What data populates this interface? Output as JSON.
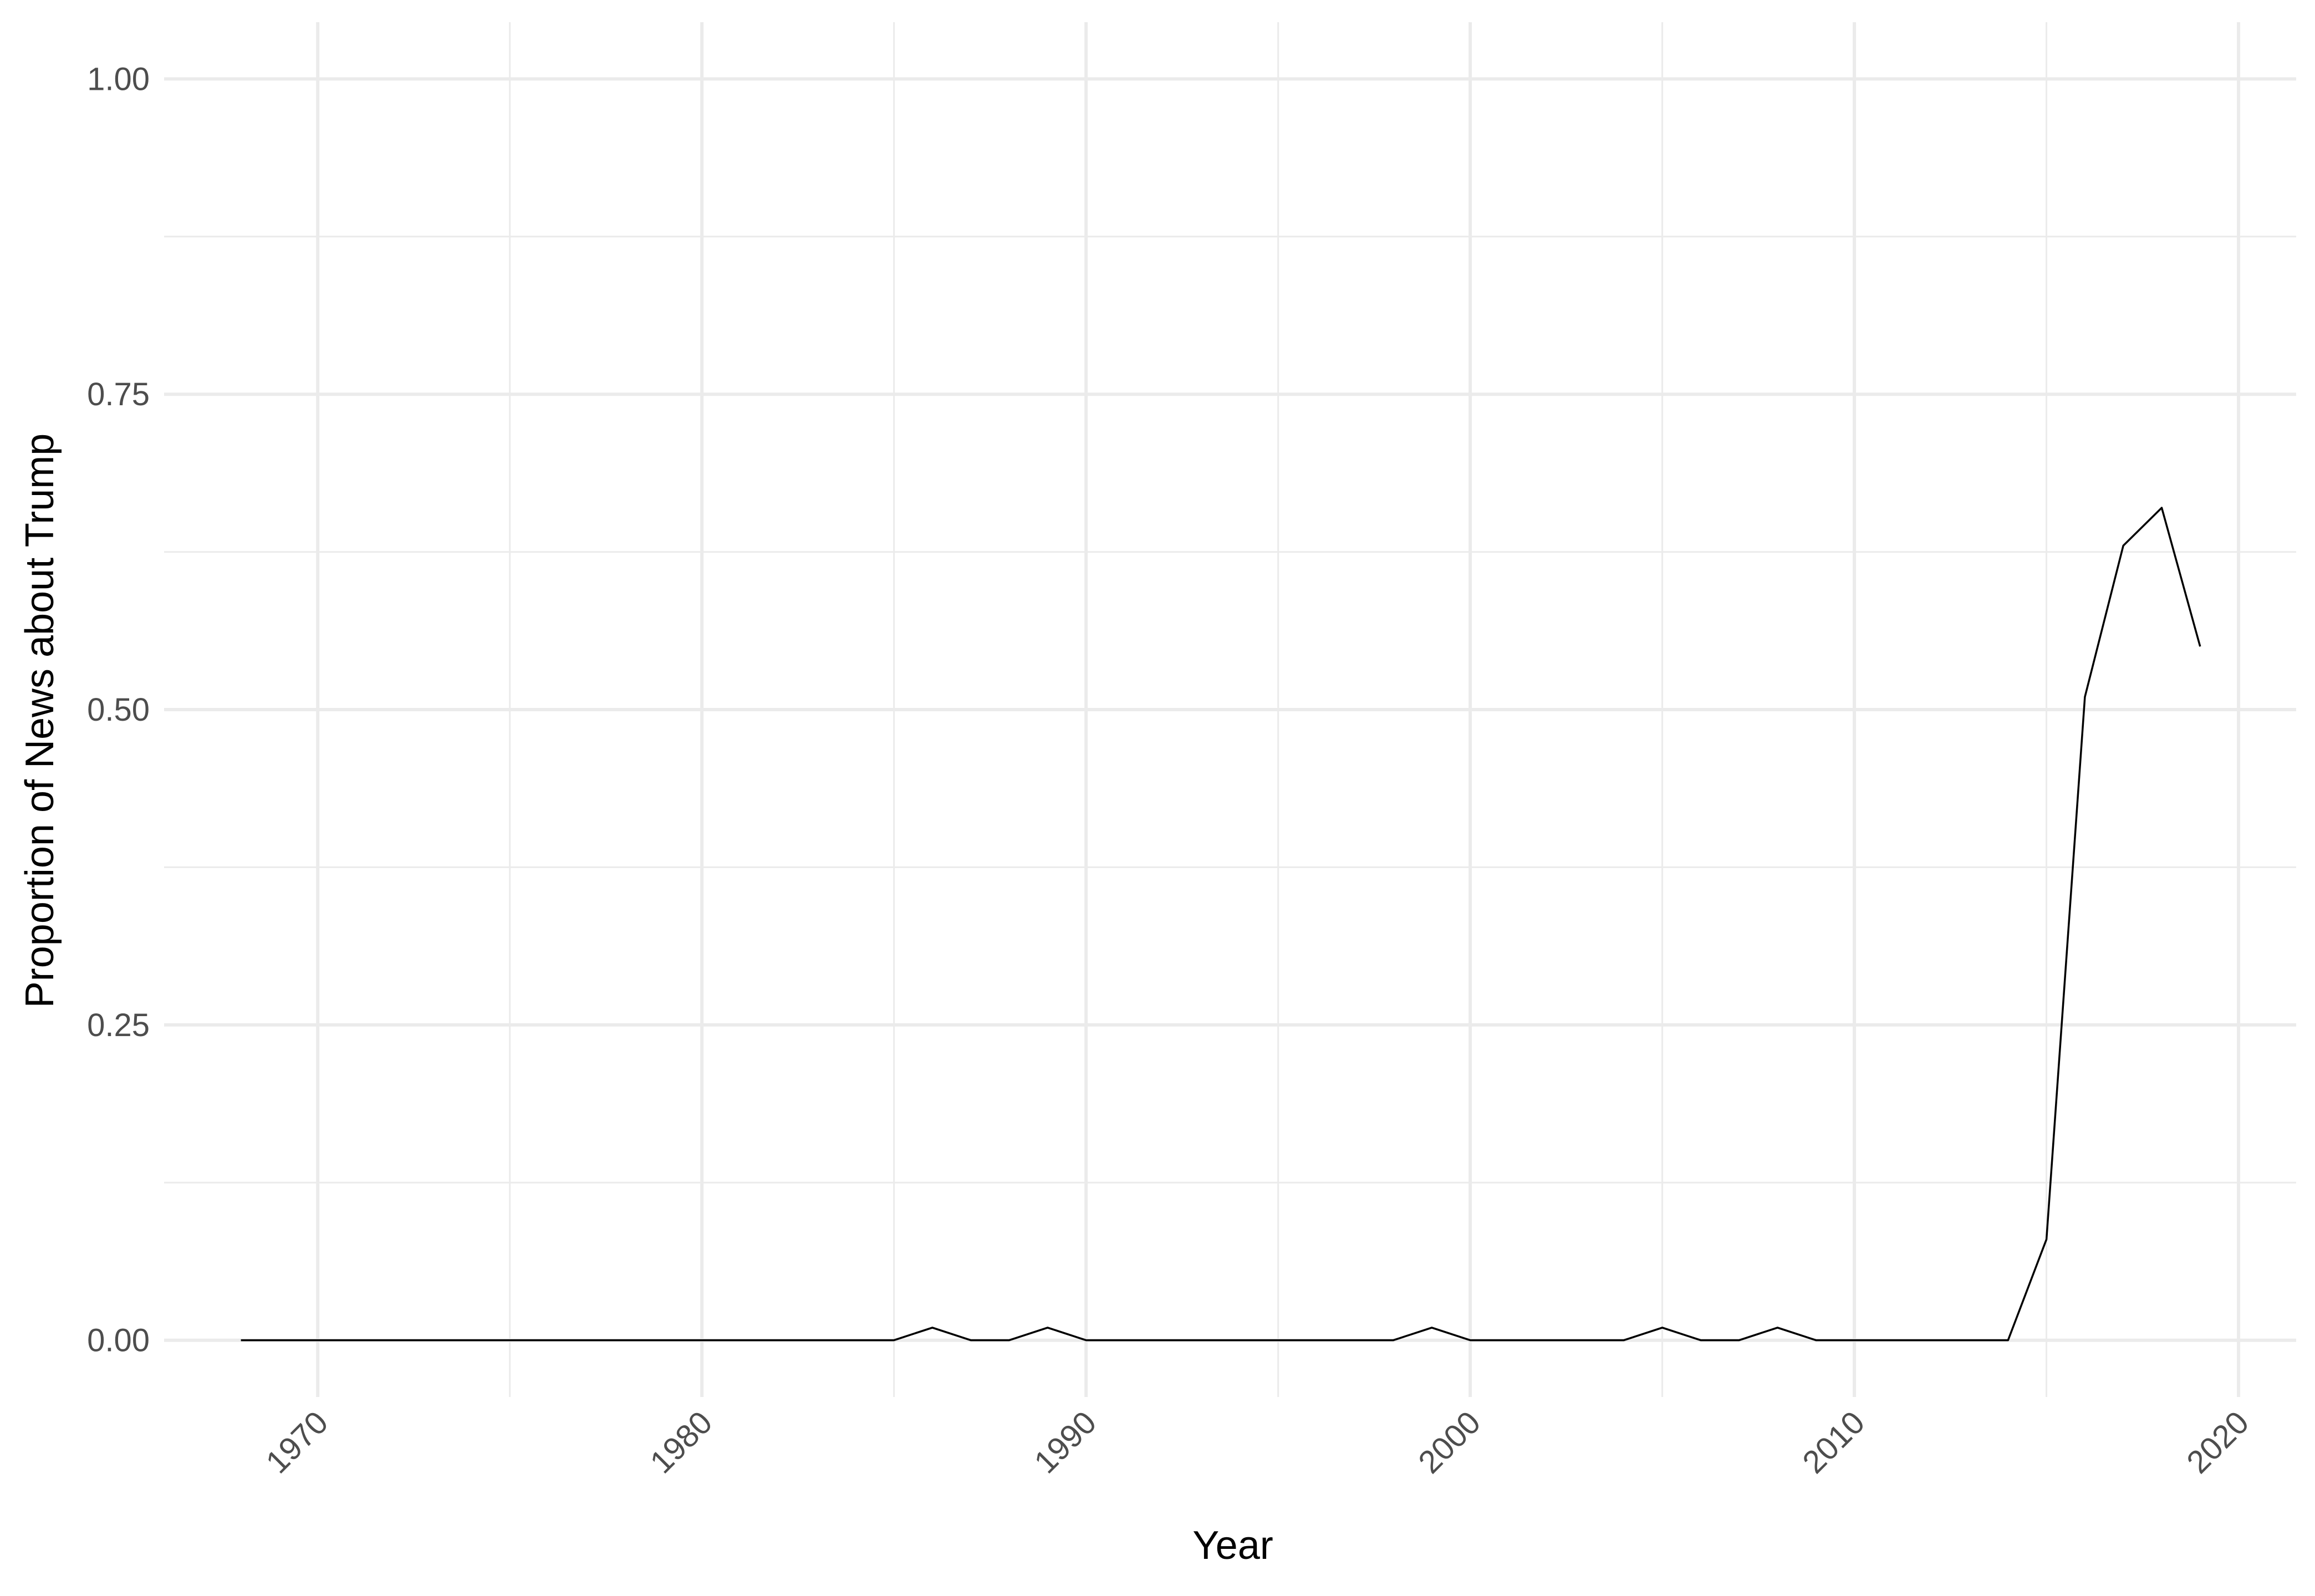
{
  "chart_data": {
    "type": "line",
    "xlabel": "Year",
    "ylabel": "Proportion of News about Trump",
    "xlim": [
      1966,
      2021.5
    ],
    "ylim": [
      -0.045,
      1.045
    ],
    "x_ticks": [
      1970,
      1980,
      1990,
      2000,
      2010,
      2020
    ],
    "x_tick_labels": [
      "1970",
      "1980",
      "1990",
      "2000",
      "2010",
      "2020"
    ],
    "x_minor_ticks": [
      1975,
      1985,
      1995,
      2005,
      2015
    ],
    "y_ticks": [
      0,
      0.25,
      0.5,
      0.75,
      1.0
    ],
    "y_tick_labels": [
      "0.00",
      "0.25",
      "0.50",
      "0.75",
      "1.00"
    ],
    "y_minor_ticks": [
      0.125,
      0.375,
      0.625,
      0.875
    ],
    "grid": true,
    "series": [
      {
        "color": "#000000",
        "x": [
          1968,
          1969,
          1970,
          1971,
          1972,
          1973,
          1974,
          1975,
          1976,
          1977,
          1978,
          1979,
          1980,
          1981,
          1982,
          1983,
          1984,
          1985,
          1986,
          1987,
          1988,
          1989,
          1990,
          1991,
          1992,
          1993,
          1994,
          1995,
          1996,
          1997,
          1998,
          1999,
          2000,
          2001,
          2002,
          2003,
          2004,
          2005,
          2006,
          2007,
          2008,
          2009,
          2010,
          2011,
          2012,
          2013,
          2014,
          2015,
          2016,
          2017,
          2018,
          2019
        ],
        "values": [
          0,
          0,
          0,
          0,
          0,
          0,
          0,
          0,
          0,
          0,
          0,
          0,
          0,
          0,
          0,
          0,
          0,
          0,
          0.01,
          0,
          0,
          0.01,
          0,
          0,
          0,
          0,
          0,
          0,
          0,
          0,
          0,
          0.01,
          0,
          0,
          0,
          0,
          0,
          0.01,
          0,
          0,
          0.01,
          0,
          0,
          0,
          0,
          0,
          0,
          0.08,
          0.51,
          0.63,
          0.66,
          0.55
        ]
      }
    ]
  }
}
